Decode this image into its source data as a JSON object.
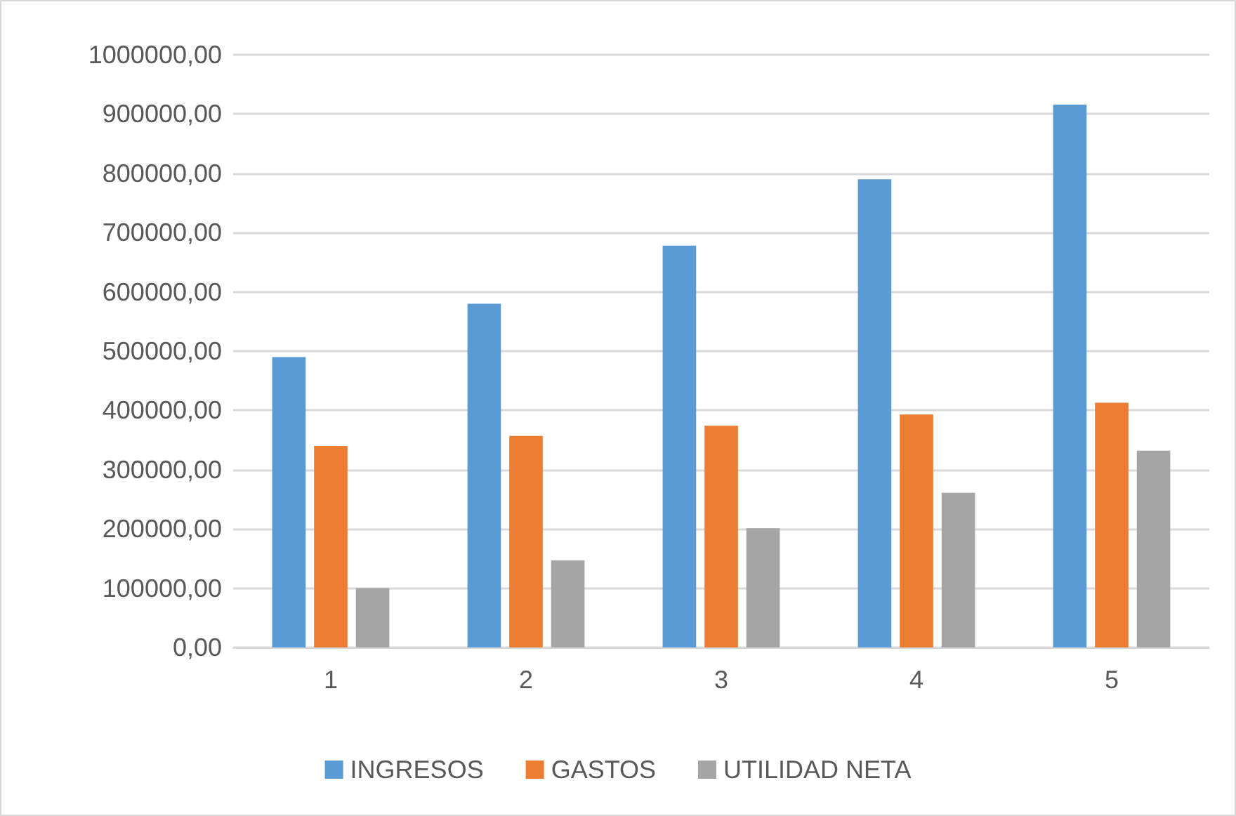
{
  "chart_data": {
    "type": "bar",
    "categories": [
      "1",
      "2",
      "3",
      "4",
      "5"
    ],
    "series": [
      {
        "name": "INGRESOS",
        "color": "#5b9bd5",
        "values": [
          490000,
          580000,
          678000,
          790000,
          916000
        ]
      },
      {
        "name": "GASTOS",
        "color": "#ed7d31",
        "values": [
          340000,
          357000,
          374000,
          393000,
          413000
        ]
      },
      {
        "name": "UTILIDAD NETA",
        "color": "#a5a5a5",
        "values": [
          100000,
          147000,
          201000,
          261000,
          332000
        ]
      }
    ],
    "ylim": [
      0,
      1000000
    ],
    "yticks": [
      {
        "value": 0,
        "label": "0,00"
      },
      {
        "value": 100000,
        "label": "100000,00"
      },
      {
        "value": 200000,
        "label": "200000,00"
      },
      {
        "value": 300000,
        "label": "300000,00"
      },
      {
        "value": 400000,
        "label": "400000,00"
      },
      {
        "value": 500000,
        "label": "500000,00"
      },
      {
        "value": 600000,
        "label": "600000,00"
      },
      {
        "value": 700000,
        "label": "700000,00"
      },
      {
        "value": 800000,
        "label": "800000,00"
      },
      {
        "value": 900000,
        "label": "900000,00"
      },
      {
        "value": 1000000,
        "label": "1000000,00"
      }
    ],
    "grid": "y",
    "legend": "bottom"
  }
}
